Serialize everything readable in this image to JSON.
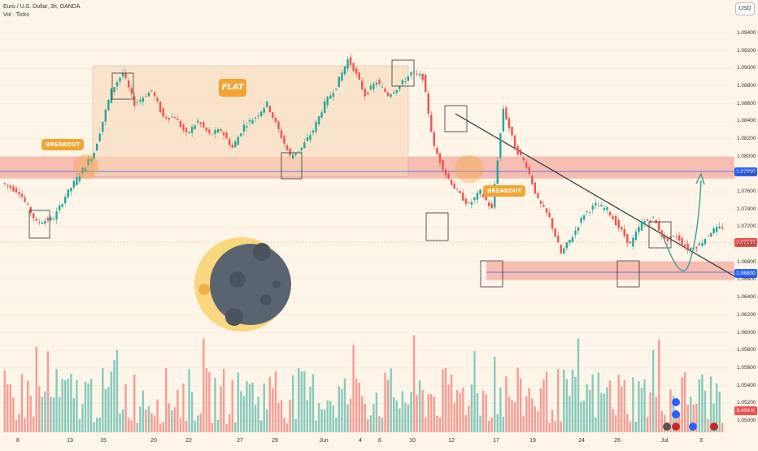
{
  "header": {
    "title": "Euro / U.S. Dollar, 3h, OANDA",
    "indicator": "Vol · Ticks"
  },
  "currency_button": "USD",
  "annotations": {
    "breakout_left": "BREAKOUT",
    "breakout_right": "BREAKOUT",
    "flat": "FLAT"
  },
  "price_tags": {
    "resistance": "1.07900",
    "current": "1.07131",
    "support": "1.06800",
    "volume": "6.404 K"
  },
  "colors": {
    "up": "#26a69a",
    "down": "#ef5350",
    "zone": "#f4a59a",
    "accent": "#f5a331",
    "line_blue": "#2962ff",
    "moon_dark": "#5a6470",
    "moon_light": "#f9d77e"
  },
  "chart_data": {
    "type": "candlestick",
    "title": "Euro / U.S. Dollar, 3h, OANDA",
    "y_axis": {
      "ticks": [
        "1.09400",
        "1.09200",
        "1.09000",
        "1.08800",
        "1.08600",
        "1.08400",
        "1.08200",
        "1.08000",
        "1.07800",
        "1.07600",
        "1.07400",
        "1.07200",
        "1.07000",
        "1.06800",
        "1.06600",
        "1.06400",
        "1.06200",
        "1.06000",
        "1.05800",
        "1.05600",
        "1.05400",
        "1.05200",
        "1.05000"
      ],
      "range": [
        1.05,
        1.095
      ]
    },
    "x_axis": {
      "ticks": [
        "8",
        "13",
        "15",
        "20",
        "22",
        "27",
        "29",
        "Jun",
        "4",
        "6",
        "10",
        "12",
        "17",
        "19",
        "24",
        "26",
        "Jul",
        "3"
      ]
    },
    "price_path": [
      [
        0,
        1.077
      ],
      [
        3,
        1.076
      ],
      [
        6,
        1.0725
      ],
      [
        9,
        1.073
      ],
      [
        11,
        1.0755
      ],
      [
        13,
        1.0775
      ],
      [
        16,
        1.0805
      ],
      [
        19,
        1.0875
      ],
      [
        21,
        1.0895
      ],
      [
        23,
        1.086
      ],
      [
        26,
        1.0875
      ],
      [
        28,
        1.0845
      ],
      [
        30,
        1.0845
      ],
      [
        32,
        1.0825
      ],
      [
        34,
        1.084
      ],
      [
        36,
        1.0825
      ],
      [
        38,
        1.083
      ],
      [
        40,
        1.081
      ],
      [
        42,
        1.0835
      ],
      [
        44,
        1.0845
      ],
      [
        46,
        1.086
      ],
      [
        48,
        1.083
      ],
      [
        50,
        1.08
      ],
      [
        52,
        1.081
      ],
      [
        54,
        1.083
      ],
      [
        56,
        1.086
      ],
      [
        58,
        1.088
      ],
      [
        60,
        1.091
      ],
      [
        61,
        1.09
      ],
      [
        63,
        1.087
      ],
      [
        65,
        1.0885
      ],
      [
        67,
        1.087
      ],
      [
        69,
        1.088
      ],
      [
        71,
        1.0895
      ],
      [
        73,
        1.089
      ],
      [
        75,
        1.081
      ],
      [
        77,
        1.078
      ],
      [
        79,
        1.076
      ],
      [
        81,
        1.0745
      ],
      [
        83,
        1.076
      ],
      [
        85,
        1.074
      ],
      [
        87,
        1.0855
      ],
      [
        89,
        1.081
      ],
      [
        91,
        1.079
      ],
      [
        93,
        1.075
      ],
      [
        95,
        1.073
      ],
      [
        97,
        1.069
      ],
      [
        99,
        1.071
      ],
      [
        101,
        1.0735
      ],
      [
        103,
        1.0745
      ],
      [
        105,
        1.074
      ],
      [
        107,
        1.072
      ],
      [
        109,
        1.07
      ],
      [
        111,
        1.0725
      ],
      [
        113,
        1.073
      ],
      [
        115,
        1.0705
      ],
      [
        117,
        1.071
      ],
      [
        119,
        1.0695
      ],
      [
        121,
        1.07
      ],
      [
        123,
        1.0715
      ],
      [
        125,
        1.072
      ]
    ],
    "series": [
      {
        "name": "Vol · Ticks",
        "values": []
      }
    ],
    "levels": [
      {
        "value": 1.079,
        "type": "horizontal"
      },
      {
        "value": 1.068,
        "type": "horizontal"
      }
    ],
    "last_price": 1.07131,
    "last_volume": "6.404 K"
  }
}
